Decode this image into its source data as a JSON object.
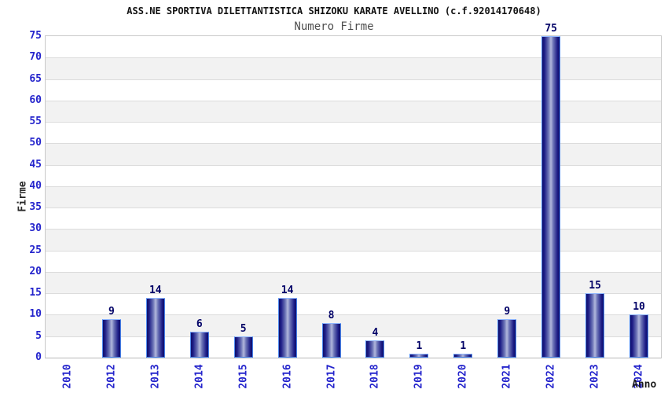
{
  "chart_data": {
    "type": "bar",
    "title": "ASS.NE SPORTIVA DILETTANTISTICA SHIZOKU KARATE AVELLINO (c.f.92014170648)",
    "subtitle": "Numero Firme",
    "categories": [
      "2010",
      "2012",
      "2013",
      "2014",
      "2015",
      "2016",
      "2017",
      "2018",
      "2019",
      "2020",
      "2021",
      "2022",
      "2023",
      "2024"
    ],
    "values": [
      0,
      9,
      14,
      6,
      5,
      14,
      8,
      4,
      1,
      1,
      9,
      75,
      15,
      10
    ],
    "xlabel": "Anno",
    "ylabel": "Firme",
    "ylim": [
      0,
      75
    ],
    "ytick_step": 5,
    "grid": "horizontal-bands",
    "legend": "none",
    "show_value_labels": true,
    "zero_values_unlabeled": true
  },
  "colors": {
    "tick_label": "#2525cc",
    "value_label": "#000066",
    "title": "#111111",
    "subtitle": "#4d4d4d",
    "axis_title": "#2a2a2a",
    "band_light": "#ffffff",
    "band_dark": "#f2f2f2",
    "gridline": "#dcdcdc",
    "plot_border": "#c9c9c9",
    "bar_border": "#4a86ee",
    "bar_edge": "#10106a",
    "bar_dark": "#1c1c86",
    "bar_mid": "#6b73b6",
    "bar_light": "#b2b8dc"
  }
}
